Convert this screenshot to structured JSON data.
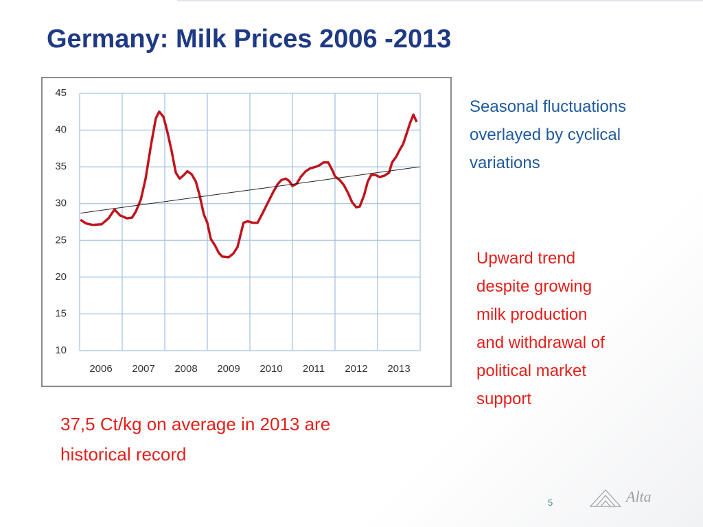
{
  "chart_data": {
    "type": "line",
    "title": "Germany: Milk Prices 2006 -2013",
    "xlim": [
      2006,
      2014
    ],
    "xticks": [
      2006,
      2007,
      2008,
      2009,
      2010,
      2011,
      2012,
      2013
    ],
    "ylim": [
      10,
      45
    ],
    "yticks": [
      10,
      15,
      20,
      25,
      30,
      35,
      40,
      45
    ],
    "grid": true,
    "series": [
      {
        "color": "#c0141c",
        "x": [
          2006.02,
          2006.15,
          2006.31,
          2006.52,
          2006.68,
          2006.82,
          2006.95,
          2007.11,
          2007.23,
          2007.32,
          2007.44,
          2007.55,
          2007.68,
          2007.79,
          2007.87,
          2007.97,
          2008.06,
          2008.16,
          2008.26,
          2008.35,
          2008.45,
          2008.53,
          2008.63,
          2008.73,
          2008.82,
          2008.92,
          2009.0,
          2009.08,
          2009.18,
          2009.27,
          2009.35,
          2009.5,
          2009.61,
          2009.71,
          2009.77,
          2009.85,
          2009.95,
          2010.06,
          2010.18,
          2010.29,
          2010.42,
          2010.55,
          2010.66,
          2010.74,
          2010.84,
          2010.92,
          2011.0,
          2011.1,
          2011.19,
          2011.31,
          2011.42,
          2011.55,
          2011.63,
          2011.73,
          2011.84,
          2011.94,
          2012.0,
          2012.11,
          2012.21,
          2012.31,
          2012.4,
          2012.5,
          2012.58,
          2012.68,
          2012.77,
          2012.85,
          2012.95,
          2013.05,
          2013.16,
          2013.27,
          2013.34,
          2013.44,
          2013.52,
          2013.6,
          2013.68,
          2013.76,
          2013.84,
          2013.92
        ],
        "values": [
          27.8,
          27.3,
          27.1,
          27.2,
          28.0,
          29.2,
          28.4,
          28.0,
          28.1,
          28.9,
          30.6,
          33.4,
          38.1,
          41.6,
          42.5,
          41.8,
          39.8,
          37.2,
          34.2,
          33.4,
          33.9,
          34.4,
          34.0,
          33.0,
          31.1,
          28.5,
          27.4,
          25.2,
          24.3,
          23.3,
          22.8,
          22.7,
          23.2,
          24.1,
          25.5,
          27.4,
          27.6,
          27.4,
          27.4,
          28.6,
          30.1,
          31.6,
          32.7,
          33.2,
          33.4,
          33.1,
          32.4,
          32.7,
          33.6,
          34.4,
          34.8,
          35.0,
          35.2,
          35.6,
          35.6,
          34.5,
          33.7,
          33.2,
          32.5,
          31.4,
          30.2,
          29.5,
          29.6,
          31.1,
          33.0,
          33.9,
          33.9,
          33.6,
          33.8,
          34.2,
          35.6,
          36.4,
          37.3,
          38.1,
          39.5,
          40.9,
          42.1,
          41.1
        ]
      },
      {
        "color": "#222222",
        "x": [
          2006.02,
          2013.99
        ],
        "values": [
          28.7,
          35.0
        ]
      }
    ]
  },
  "annotations": [
    [
      "Seasonal fluctuations",
      "overlayed by cyclical",
      "variations"
    ],
    [
      "Upward trend",
      "despite growing",
      "milk production",
      "and withdrawal of",
      "political market",
      "support"
    ],
    [
      "37,5 Ct/kg on average  in 2013 are",
      "historical record"
    ]
  ],
  "page_number": "5",
  "logo": "Alta"
}
